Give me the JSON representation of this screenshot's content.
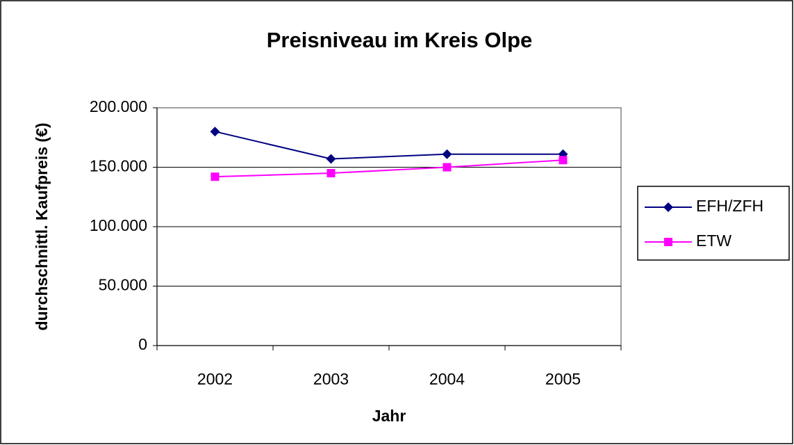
{
  "chart_data": {
    "type": "line",
    "title": "Preisniveau im Kreis Olpe",
    "x_label": "Jahr",
    "y_label": "durchschnittl. Kaufpreis (€)",
    "categories": [
      "2002",
      "2003",
      "2004",
      "2005"
    ],
    "series": [
      {
        "name": "EFH/ZFH",
        "color": "#000080",
        "marker": "diamond",
        "values": [
          180000,
          157000,
          161000,
          161000
        ]
      },
      {
        "name": "ETW",
        "color": "#ff00ff",
        "marker": "square",
        "values": [
          142000,
          145000,
          150000,
          156000
        ]
      }
    ],
    "ylim": [
      0,
      200000
    ],
    "yticks": [
      0,
      {
        "value": 50000,
        "label": "50.000"
      },
      {
        "value": 100000,
        "label": "100.000"
      },
      {
        "value": 150000,
        "label": "150.000"
      },
      {
        "value": 200000,
        "label": "200.000"
      }
    ],
    "grid": true,
    "legend": "right"
  }
}
